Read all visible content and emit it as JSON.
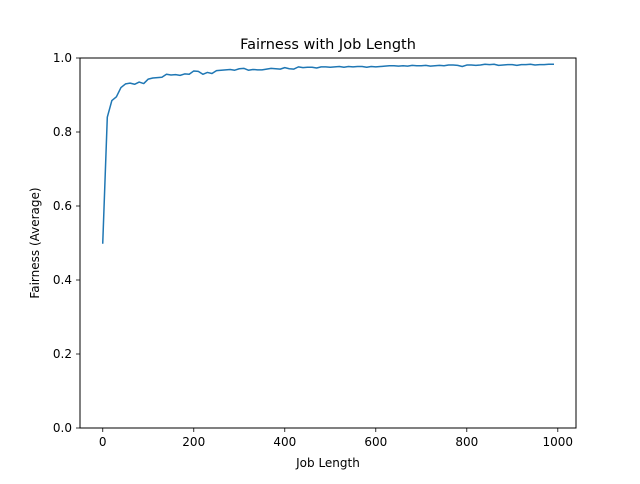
{
  "chart_data": {
    "type": "line",
    "title": "Fairness with Job Length",
    "xlabel": "Job Length",
    "ylabel": "Fairness (Average)",
    "xlim": [
      -50,
      1040
    ],
    "ylim": [
      0.0,
      1.0
    ],
    "xticks": [
      0,
      200,
      400,
      600,
      800,
      1000
    ],
    "yticks": [
      0.0,
      0.2,
      0.4,
      0.6,
      0.8,
      1.0
    ],
    "xtick_labels": [
      "0",
      "200",
      "400",
      "600",
      "800",
      "1000"
    ],
    "ytick_labels": [
      "0.0",
      "0.2",
      "0.4",
      "0.6",
      "0.8",
      "1.0"
    ],
    "grid": false,
    "series": [
      {
        "color": "#1f77b4",
        "x": [
          0,
          10,
          20,
          30,
          40,
          50,
          60,
          70,
          80,
          90,
          100,
          110,
          120,
          130,
          140,
          150,
          160,
          170,
          180,
          190,
          200,
          210,
          220,
          230,
          240,
          250,
          260,
          270,
          280,
          290,
          300,
          310,
          320,
          330,
          340,
          350,
          360,
          370,
          380,
          390,
          400,
          410,
          420,
          430,
          440,
          450,
          460,
          470,
          480,
          490,
          500,
          510,
          520,
          530,
          540,
          550,
          560,
          570,
          580,
          590,
          600,
          610,
          620,
          630,
          640,
          650,
          660,
          670,
          680,
          690,
          700,
          710,
          720,
          730,
          740,
          750,
          760,
          770,
          780,
          790,
          800,
          810,
          820,
          830,
          840,
          850,
          860,
          870,
          880,
          890,
          900,
          910,
          920,
          930,
          940,
          950,
          960,
          970,
          980,
          990
        ],
        "y": [
          0.5,
          0.84,
          0.885,
          0.895,
          0.92,
          0.93,
          0.932,
          0.929,
          0.935,
          0.931,
          0.943,
          0.946,
          0.947,
          0.948,
          0.956,
          0.954,
          0.955,
          0.953,
          0.957,
          0.956,
          0.965,
          0.964,
          0.956,
          0.961,
          0.958,
          0.966,
          0.967,
          0.968,
          0.969,
          0.967,
          0.971,
          0.972,
          0.967,
          0.969,
          0.968,
          0.968,
          0.97,
          0.972,
          0.971,
          0.97,
          0.974,
          0.971,
          0.97,
          0.976,
          0.974,
          0.975,
          0.975,
          0.973,
          0.976,
          0.976,
          0.975,
          0.976,
          0.977,
          0.975,
          0.977,
          0.976,
          0.977,
          0.977,
          0.975,
          0.977,
          0.976,
          0.977,
          0.978,
          0.979,
          0.979,
          0.978,
          0.979,
          0.978,
          0.98,
          0.979,
          0.979,
          0.98,
          0.978,
          0.979,
          0.98,
          0.979,
          0.981,
          0.981,
          0.98,
          0.977,
          0.981,
          0.981,
          0.98,
          0.981,
          0.983,
          0.982,
          0.983,
          0.98,
          0.981,
          0.982,
          0.982,
          0.98,
          0.982,
          0.982,
          0.983,
          0.981,
          0.982,
          0.982,
          0.983,
          0.983
        ]
      }
    ]
  }
}
